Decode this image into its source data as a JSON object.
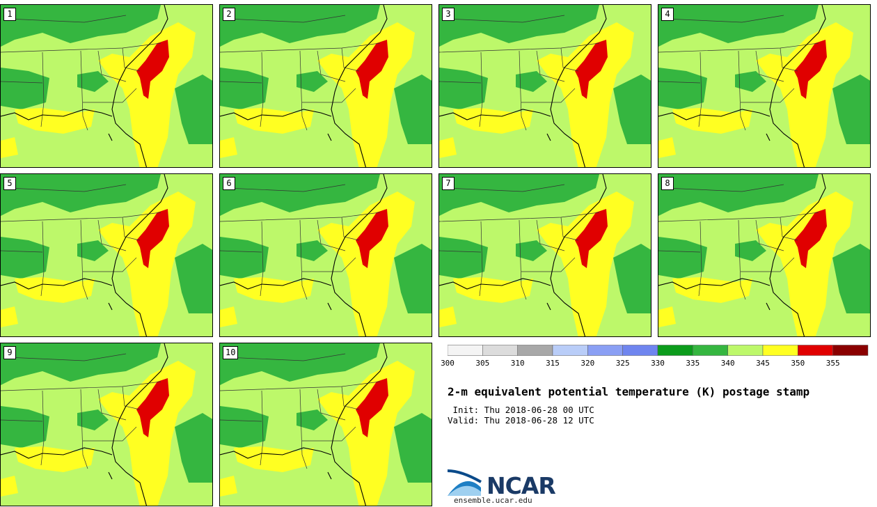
{
  "panels": [
    {
      "label": "1"
    },
    {
      "label": "2"
    },
    {
      "label": "3"
    },
    {
      "label": "4"
    },
    {
      "label": "5"
    },
    {
      "label": "6"
    },
    {
      "label": "7"
    },
    {
      "label": "8"
    },
    {
      "label": "9"
    },
    {
      "label": "10"
    }
  ],
  "colorbar": {
    "ticks": [
      "300",
      "305",
      "310",
      "315",
      "320",
      "325",
      "330",
      "335",
      "340",
      "345",
      "350",
      "355"
    ],
    "colors": [
      "#f4f4f4",
      "#dcdcdc",
      "#a8a8a8",
      "#b9cdf8",
      "#8a9ff4",
      "#6f85ef",
      "#0c9c1c",
      "#35b640",
      "#bdf86a",
      "#ffff22",
      "#e00000",
      "#8a0000"
    ]
  },
  "title": "2-m equivalent potential temperature (K) postage stamp",
  "init_text": " Init: Thu 2018-06-28 00 UTC",
  "valid_text": "Valid: Thu 2018-06-28 12 UTC",
  "logo": {
    "name": "NCAR",
    "url": "ensemble.ucar.edu"
  }
}
